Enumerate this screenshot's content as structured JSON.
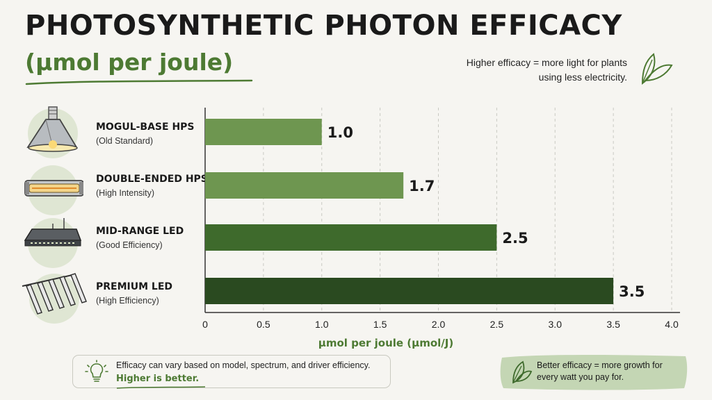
{
  "header": {
    "title": "PHOTOSYNTHETIC PHOTON EFFICACY",
    "subtitle": "(µmol per joule)",
    "note": "Higher efficacy = more light for plants using less electricity."
  },
  "chart_data": {
    "type": "bar",
    "orientation": "horizontal",
    "categories": [
      "MOGUL-BASE HPS",
      "DOUBLE-ENDED HPS",
      "MID-RANGE LED",
      "PREMIUM LED"
    ],
    "category_subtitles": [
      "(Old Standard)",
      "(High Intensity)",
      "(Good Efficiency)",
      "(High Efficiency)"
    ],
    "values": [
      1.0,
      1.7,
      2.5,
      3.5
    ],
    "data_labels": [
      "1.0",
      "1.7",
      "2.5",
      "3.5"
    ],
    "bar_colors": [
      "#6e9650",
      "#6e9650",
      "#3e6a2c",
      "#2a4a20"
    ],
    "xlabel": "µmol per joule (µmol/J)",
    "ylabel": "",
    "xlim": [
      0,
      4.0
    ],
    "xticks": [
      0,
      0.5,
      1.0,
      1.5,
      2.0,
      2.5,
      3.0,
      3.5,
      4.0
    ],
    "xtick_labels": [
      "0",
      "0.5",
      "1.0",
      "1.5",
      "2.0",
      "2.5",
      "3.0",
      "3.5",
      "4.0"
    ],
    "grid": "vertical dashed",
    "icons": [
      "hps-reflector-icon",
      "double-ended-hps-icon",
      "led-panel-icon",
      "led-bar-fixture-icon"
    ]
  },
  "footer": {
    "note": "Efficacy can vary based on model, spectrum, and driver efficiency.",
    "emphasis": "Higher is better.",
    "callout": "Better efficacy = more growth for every watt you pay for."
  },
  "colors": {
    "accent": "#4d7a33",
    "circle": "#dfe6d3",
    "callout": "#c4d6b4"
  }
}
